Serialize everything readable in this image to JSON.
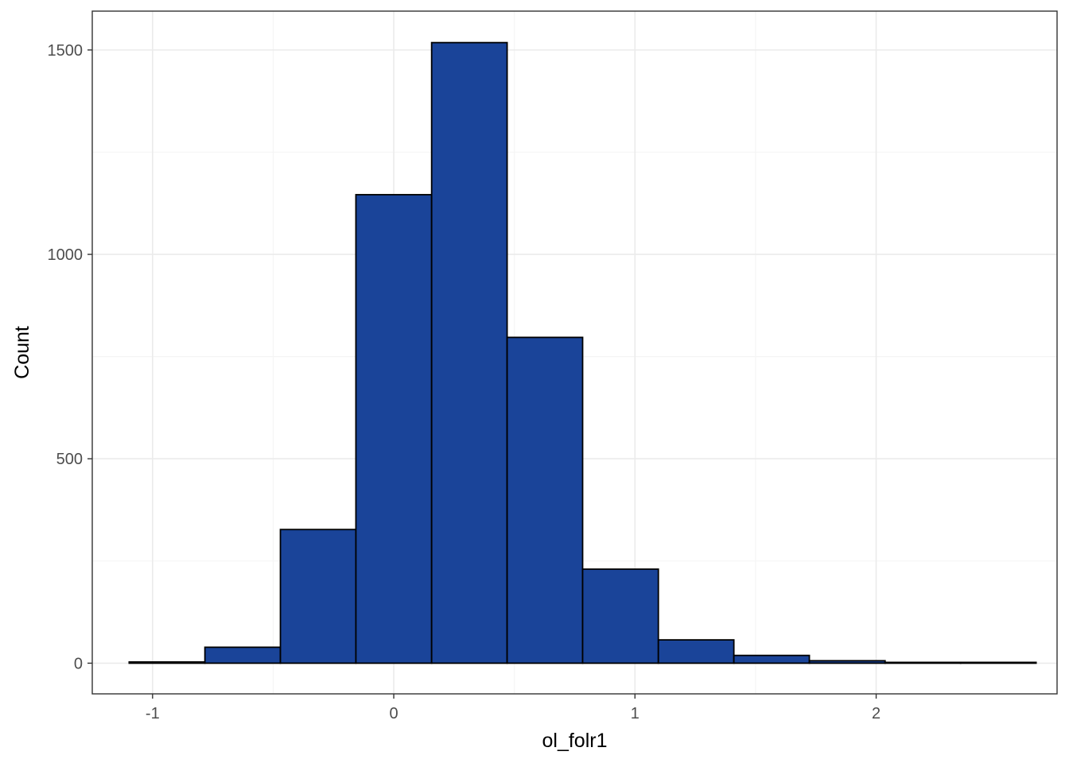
{
  "chart_data": {
    "type": "bar",
    "title": "",
    "xlabel": "ol_folr1",
    "ylabel": "Count",
    "xlim": [
      -1.25,
      2.75
    ],
    "ylim": [
      -75,
      1595
    ],
    "x_ticks": [
      -1,
      0,
      1,
      2
    ],
    "y_ticks": [
      0,
      500,
      1000,
      1500
    ],
    "x_tick_labels": [
      "-1",
      "0",
      "1",
      "2"
    ],
    "y_tick_labels": [
      "0",
      "500",
      "1000",
      "1500"
    ],
    "grid": true,
    "legend": "none",
    "bins": [
      {
        "start": -1.097,
        "end": -0.783,
        "count": 3
      },
      {
        "start": -0.783,
        "end": -0.47,
        "count": 39
      },
      {
        "start": -0.47,
        "end": -0.157,
        "count": 327
      },
      {
        "start": -0.157,
        "end": 0.157,
        "count": 1146
      },
      {
        "start": 0.157,
        "end": 0.47,
        "count": 1518
      },
      {
        "start": 0.47,
        "end": 0.783,
        "count": 797
      },
      {
        "start": 0.783,
        "end": 1.097,
        "count": 230
      },
      {
        "start": 1.097,
        "end": 1.41,
        "count": 57
      },
      {
        "start": 1.41,
        "end": 1.723,
        "count": 19
      },
      {
        "start": 1.723,
        "end": 2.037,
        "count": 6
      },
      {
        "start": 2.037,
        "end": 2.35,
        "count": 2
      },
      {
        "start": 2.35,
        "end": 2.663,
        "count": 2
      }
    ],
    "colors": {
      "bar_fill": "#1a4499",
      "bar_stroke": "#000000",
      "panel_border": "#333333",
      "grid_major": "#ebebeb",
      "grid_minor": "#f5f5f5"
    }
  }
}
